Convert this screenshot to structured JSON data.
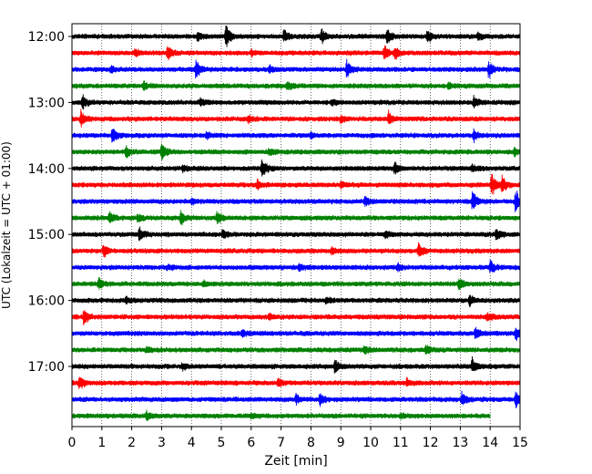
{
  "chart_data": {
    "type": "line",
    "title": "",
    "xlabel": "Zeit  [min]",
    "ylabel": "UTC (Lokalzeit = UTC + 01:00)",
    "xlim": [
      0,
      15
    ],
    "x_ticks": [
      0,
      1,
      2,
      3,
      4,
      5,
      6,
      7,
      8,
      9,
      10,
      11,
      12,
      13,
      14,
      15
    ],
    "x_tick_labels": [
      "0",
      "1",
      "2",
      "3",
      "4",
      "5",
      "6",
      "7",
      "8",
      "9",
      "10",
      "11",
      "12",
      "13",
      "14",
      "15"
    ],
    "y_tick_labels": [
      "12:00",
      "13:00",
      "14:00",
      "15:00",
      "16:00",
      "17:00"
    ],
    "vertical_grid": true,
    "grid_style": "dotted",
    "color_cycle": [
      "#000000",
      "#ff0000",
      "#0000ff",
      "#008000"
    ],
    "series": [
      {
        "start": "12:00",
        "end_min": 15,
        "events": [
          [
            5.15,
            1.0
          ],
          [
            7.1,
            0.55
          ],
          [
            8.35,
            0.6
          ],
          [
            10.55,
            0.65
          ],
          [
            11.9,
            0.6
          ],
          [
            4.2,
            0.3
          ],
          [
            13.6,
            0.3
          ]
        ]
      },
      {
        "start": "12:15",
        "end_min": 15,
        "events": [
          [
            3.2,
            0.7
          ],
          [
            10.45,
            0.65
          ],
          [
            10.8,
            0.55
          ],
          [
            2.1,
            0.3
          ],
          [
            6.0,
            0.25
          ]
        ]
      },
      {
        "start": "12:30",
        "end_min": 15,
        "events": [
          [
            4.15,
            0.8
          ],
          [
            9.2,
            0.8
          ],
          [
            13.95,
            0.7
          ],
          [
            1.3,
            0.25
          ],
          [
            6.6,
            0.3
          ]
        ]
      },
      {
        "start": "12:45",
        "end_min": 15,
        "events": [
          [
            2.4,
            0.4
          ],
          [
            7.2,
            0.35
          ],
          [
            12.6,
            0.3
          ]
        ]
      },
      {
        "start": "13:00",
        "end_min": 15,
        "events": [
          [
            0.35,
            0.6
          ],
          [
            13.45,
            0.5
          ],
          [
            4.3,
            0.3
          ],
          [
            8.7,
            0.25
          ]
        ]
      },
      {
        "start": "13:15",
        "end_min": 15,
        "events": [
          [
            0.3,
            0.7
          ],
          [
            10.6,
            0.55
          ],
          [
            9.0,
            0.4
          ],
          [
            5.9,
            0.3
          ]
        ]
      },
      {
        "start": "13:30",
        "end_min": 15,
        "events": [
          [
            1.35,
            0.65
          ],
          [
            13.45,
            0.45
          ],
          [
            4.5,
            0.3
          ],
          [
            8.0,
            0.2
          ]
        ]
      },
      {
        "start": "13:45",
        "end_min": 15,
        "events": [
          [
            3.0,
            0.85
          ],
          [
            1.8,
            0.5
          ],
          [
            14.8,
            0.3
          ],
          [
            6.6,
            0.25
          ]
        ]
      },
      {
        "start": "14:00",
        "end_min": 15,
        "events": [
          [
            6.35,
            0.8
          ],
          [
            10.8,
            0.55
          ],
          [
            3.7,
            0.3
          ],
          [
            13.4,
            0.3
          ]
        ]
      },
      {
        "start": "14:15",
        "end_min": 15,
        "events": [
          [
            14.05,
            1.0
          ],
          [
            14.4,
            0.7
          ],
          [
            6.2,
            0.35
          ],
          [
            9.0,
            0.25
          ]
        ]
      },
      {
        "start": "14:30",
        "end_min": 15,
        "events": [
          [
            14.85,
            0.95
          ],
          [
            13.4,
            0.85
          ],
          [
            9.8,
            0.45
          ],
          [
            4.0,
            0.2
          ]
        ]
      },
      {
        "start": "14:45",
        "end_min": 15,
        "events": [
          [
            1.25,
            0.6
          ],
          [
            3.65,
            0.65
          ],
          [
            4.85,
            0.5
          ],
          [
            2.2,
            0.3
          ]
        ]
      },
      {
        "start": "15:00",
        "end_min": 15,
        "events": [
          [
            2.25,
            0.6
          ],
          [
            14.2,
            0.5
          ],
          [
            5.05,
            0.35
          ],
          [
            10.5,
            0.3
          ]
        ]
      },
      {
        "start": "15:15",
        "end_min": 15,
        "events": [
          [
            1.05,
            0.5
          ],
          [
            11.6,
            0.55
          ],
          [
            8.7,
            0.3
          ]
        ]
      },
      {
        "start": "15:30",
        "end_min": 15,
        "events": [
          [
            14.0,
            0.55
          ],
          [
            7.6,
            0.3
          ],
          [
            10.9,
            0.3
          ],
          [
            3.2,
            0.2
          ]
        ]
      },
      {
        "start": "15:45",
        "end_min": 15,
        "events": [
          [
            0.9,
            0.5
          ],
          [
            12.95,
            0.55
          ],
          [
            4.4,
            0.25
          ]
        ]
      },
      {
        "start": "16:00",
        "end_min": 15,
        "events": [
          [
            13.3,
            0.45
          ],
          [
            1.8,
            0.3
          ],
          [
            8.5,
            0.25
          ]
        ]
      },
      {
        "start": "16:15",
        "end_min": 15,
        "events": [
          [
            0.4,
            0.7
          ],
          [
            13.9,
            0.35
          ],
          [
            6.6,
            0.25
          ]
        ]
      },
      {
        "start": "16:30",
        "end_min": 15,
        "events": [
          [
            13.5,
            0.55
          ],
          [
            14.85,
            0.5
          ],
          [
            5.7,
            0.3
          ]
        ]
      },
      {
        "start": "16:45",
        "end_min": 15,
        "events": [
          [
            11.85,
            0.4
          ],
          [
            9.8,
            0.3
          ],
          [
            2.5,
            0.2
          ]
        ]
      },
      {
        "start": "17:00",
        "end_min": 15,
        "events": [
          [
            8.8,
            0.55
          ],
          [
            13.4,
            0.6
          ],
          [
            3.7,
            0.25
          ]
        ]
      },
      {
        "start": "17:15",
        "end_min": 15,
        "events": [
          [
            0.25,
            0.55
          ],
          [
            6.9,
            0.3
          ],
          [
            11.2,
            0.25
          ]
        ]
      },
      {
        "start": "17:30",
        "end_min": 15,
        "events": [
          [
            8.3,
            0.55
          ],
          [
            13.05,
            0.55
          ],
          [
            14.85,
            0.75
          ],
          [
            7.5,
            0.35
          ]
        ]
      },
      {
        "start": "17:45",
        "end_min": 14,
        "events": [
          [
            2.5,
            0.35
          ],
          [
            6.0,
            0.2
          ],
          [
            11.0,
            0.2
          ]
        ]
      }
    ]
  }
}
